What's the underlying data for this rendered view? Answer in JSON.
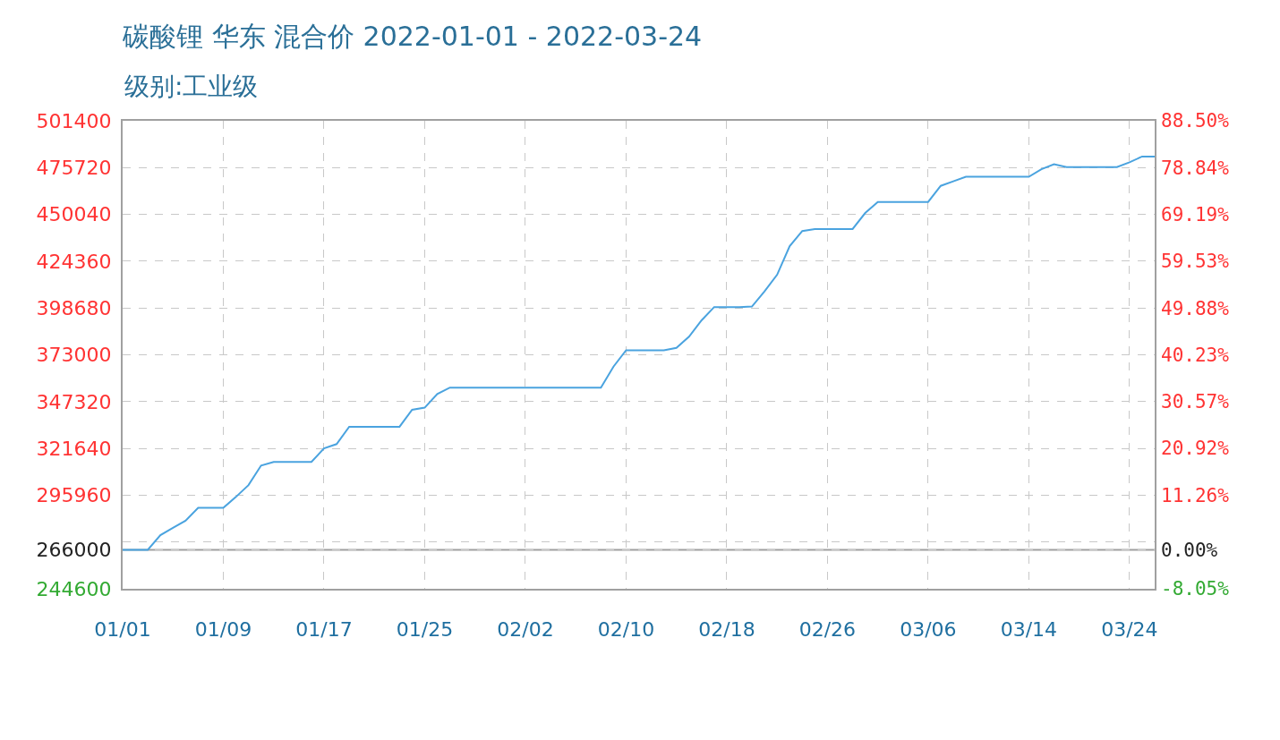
{
  "chart_data": {
    "type": "line",
    "title": "碳酸锂 华东 混合价 2022-01-01 - 2022-03-24",
    "subtitle": "级别:工业级",
    "categories": [
      "01/01",
      null,
      null,
      null,
      null,
      null,
      null,
      null,
      "01/09",
      null,
      null,
      null,
      null,
      null,
      null,
      null,
      "01/17",
      null,
      null,
      null,
      null,
      null,
      null,
      null,
      "01/25",
      null,
      null,
      null,
      null,
      null,
      null,
      null,
      "02/02",
      null,
      null,
      null,
      null,
      null,
      null,
      null,
      "02/10",
      null,
      null,
      null,
      null,
      null,
      null,
      null,
      "02/18",
      null,
      null,
      null,
      null,
      null,
      null,
      null,
      "02/26",
      null,
      null,
      null,
      null,
      null,
      null,
      null,
      "03/06",
      null,
      null,
      null,
      null,
      null,
      null,
      null,
      "03/14",
      null,
      null,
      null,
      null,
      null,
      null,
      null,
      "03/24",
      null,
      null
    ],
    "series": [
      {
        "color": "#4aa3df",
        "values": [
          266000,
          266000,
          266000,
          274000,
          278000,
          282000,
          289000,
          289000,
          289000,
          295000,
          301500,
          312200,
          314200,
          314200,
          314200,
          314200,
          321600,
          324000,
          333500,
          333500,
          333500,
          333500,
          333500,
          342800,
          344000,
          351500,
          355000,
          355000,
          355000,
          355000,
          355000,
          355000,
          355000,
          355000,
          355000,
          355000,
          355000,
          355000,
          355000,
          366500,
          375500,
          375500,
          375500,
          375500,
          376800,
          382900,
          391900,
          399200,
          399200,
          399200,
          399500,
          407800,
          416900,
          432600,
          440900,
          442000,
          442000,
          442000,
          442000,
          450800,
          456900,
          456900,
          456900,
          456900,
          456900,
          465700,
          468200,
          470700,
          470700,
          470700,
          470700,
          470700,
          470700,
          474800,
          477600,
          476000,
          476000,
          476000,
          476000,
          476000,
          478600,
          481800,
          481800
        ]
      }
    ],
    "ylim": [
      244600,
      501400
    ],
    "yticks": [
      244600,
      266000,
      {
        "value": 270280,
        "label": null
      },
      295960,
      321640,
      347320,
      373000,
      398680,
      424360,
      450040,
      475720,
      501400
    ],
    "y2lim": [
      -8.05,
      88.5
    ],
    "y2ticks": [
      {
        "value": -8.05,
        "label": "-8.05%"
      },
      {
        "value": 0,
        "label": "0.00%"
      },
      {
        "value": 11.26,
        "label": "11.26%"
      },
      {
        "value": 20.92,
        "label": "20.92%"
      },
      {
        "value": 30.57,
        "label": "30.57%"
      },
      {
        "value": 40.23,
        "label": "40.23%"
      },
      {
        "value": 49.88,
        "label": "49.88%"
      },
      {
        "value": 59.53,
        "label": "59.53%"
      },
      {
        "value": 69.19,
        "label": "69.19%"
      },
      {
        "value": 78.84,
        "label": "78.84%"
      },
      {
        "value": 88.5,
        "label": "88.50%"
      }
    ],
    "ref_lines": [
      {
        "axis": "y",
        "value": 266000,
        "color": "#a0a0a0"
      }
    ],
    "grid": true,
    "marker": "none",
    "line_style": "solid"
  }
}
